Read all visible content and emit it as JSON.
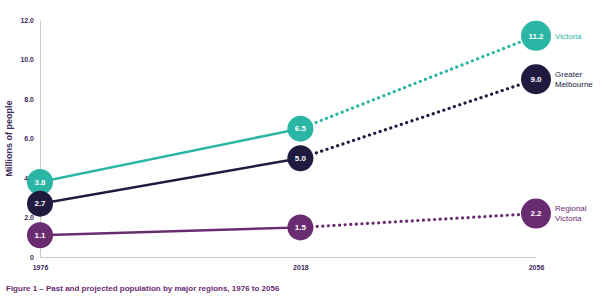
{
  "chart_data": {
    "type": "line",
    "title": "Figure 1 – Past and projected population by major regions, 1976 to 2056",
    "y_label": "Millions of people",
    "x": [
      1976,
      2018,
      2056
    ],
    "xlim": [
      1976,
      2056
    ],
    "xticks": [
      1976,
      2018,
      2056
    ],
    "ylim": [
      0,
      12
    ],
    "yticks": [
      0,
      {
        "value": 2,
        "label": "2.0"
      },
      {
        "value": 4,
        "label": "4.0"
      },
      {
        "value": 6,
        "label": "6.0"
      },
      {
        "value": 8,
        "label": "8.0"
      },
      {
        "value": 10,
        "label": "10.0"
      },
      {
        "value": 12,
        "label": "12.0"
      }
    ],
    "grid": false,
    "data_labels": true,
    "marker": "circle",
    "series": [
      {
        "name": "Victoria",
        "color": "#2bb5a5",
        "line_style": "dotted",
        "values": [
          null,
          6.5,
          11.2
        ],
        "value_labels": [
          null,
          "6.5",
          "11.2"
        ]
      },
      {
        "color": "#2bb5a5",
        "line_style": "solid",
        "values": [
          3.8,
          6.5,
          null
        ],
        "value_labels": [
          "3.8",
          "6.5",
          null
        ]
      },
      {
        "name": "Greater Melbourne",
        "color": "#201a3e",
        "line_style": "dotted",
        "values": [
          null,
          5.0,
          9.0
        ],
        "value_labels": [
          null,
          "5.0",
          "9.0"
        ]
      },
      {
        "color": "#201a3e",
        "line_style": "solid",
        "values": [
          2.7,
          5.0,
          null
        ],
        "value_labels": [
          "2.7",
          "5.0",
          null
        ]
      },
      {
        "name": "Regional Victoria",
        "color": "#6a2c70",
        "line_style": "dotted",
        "values": [
          null,
          1.5,
          2.2
        ],
        "value_labels": [
          null,
          "1.5",
          "2.2"
        ]
      },
      {
        "color": "#6a2c70",
        "line_style": "solid",
        "values": [
          1.1,
          1.5,
          null
        ],
        "value_labels": [
          "1.1",
          "1.5",
          null
        ]
      }
    ]
  }
}
